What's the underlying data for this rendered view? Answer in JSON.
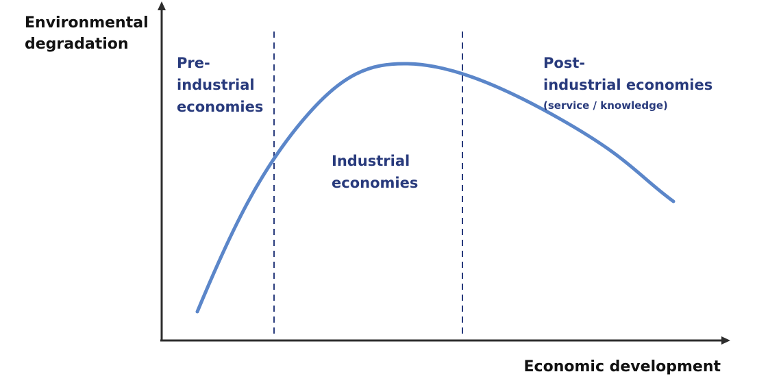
{
  "diagram": {
    "y_axis_label_line1": "Environmental",
    "y_axis_label_line2": "degradation",
    "x_axis_label": "Economic development",
    "regions": {
      "pre_industrial": {
        "line1": "Pre-",
        "line2": "industrial",
        "line3": "economies"
      },
      "industrial": {
        "line1": "Industrial",
        "line2": "economies"
      },
      "post_industrial": {
        "line1": "Post-",
        "line2": "industrial economies",
        "sublabel": "(service / knowledge)"
      }
    }
  },
  "colors": {
    "curve": "#5b86c9",
    "region_text": "#283a7c",
    "axis": "#2d2d2d",
    "divider": "#283a7c"
  }
}
